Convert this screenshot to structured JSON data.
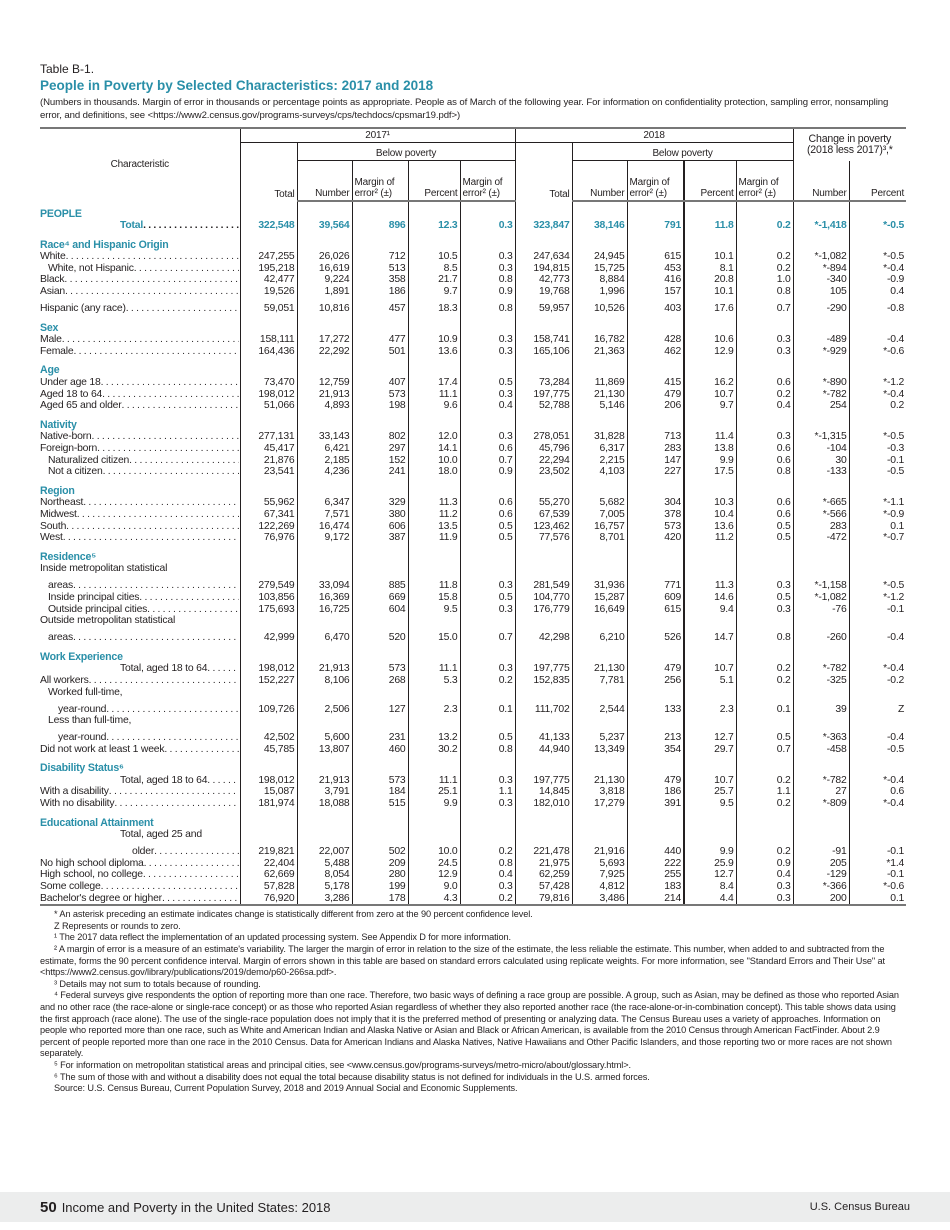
{
  "table_label": "Table B-1.",
  "title": "People in Poverty by Selected Characteristics: 2017 and 2018",
  "note": "(Numbers in thousands. Margin of error in thousands or percentage points as appropriate. People as of March of the following year. For information on confidentiality protection, sampling error, nonsampling error, and definitions, see <https://www2.census.gov/programs-surveys/cps/techdocs/cpsmar19.pdf>)",
  "header": {
    "characteristic": "Characteristic",
    "year1": "2017¹",
    "year2": "2018",
    "below": "Below poverty",
    "change": "Change in poverty (2018 less 2017)³,*",
    "total": "Total",
    "number": "Number",
    "moe": "Margin of error² (±)",
    "percent": "Percent"
  },
  "rows": [
    {
      "type": "sec",
      "label": "PEOPLE"
    },
    {
      "type": "total",
      "indent": 3,
      "label": "Total",
      "v": [
        "322,548",
        "39,564",
        "896",
        "12.3",
        "0.3",
        "323,847",
        "38,146",
        "791",
        "11.8",
        "0.2",
        "*-1,418",
        "*-0.5"
      ]
    },
    {
      "type": "sec",
      "label": "Race⁴ and Hispanic Origin"
    },
    {
      "indent": 0,
      "label": "White",
      "v": [
        "247,255",
        "26,026",
        "712",
        "10.5",
        "0.3",
        "247,634",
        "24,945",
        "615",
        "10.1",
        "0.2",
        "*-1,082",
        "*-0.5"
      ]
    },
    {
      "indent": 1,
      "label": "White, not Hispanic",
      "v": [
        "195,218",
        "16,619",
        "513",
        "8.5",
        "0.3",
        "194,815",
        "15,725",
        "453",
        "8.1",
        "0.2",
        "*-894",
        "*-0.4"
      ]
    },
    {
      "indent": 0,
      "label": "Black",
      "v": [
        "42,477",
        "9,224",
        "358",
        "21.7",
        "0.8",
        "42,773",
        "8,884",
        "416",
        "20.8",
        "1.0",
        "-340",
        "-0.9"
      ]
    },
    {
      "indent": 0,
      "label": "Asian",
      "v": [
        "19,526",
        "1,891",
        "186",
        "9.7",
        "0.9",
        "19,768",
        "1,996",
        "157",
        "10.1",
        "0.8",
        "105",
        "0.4"
      ]
    },
    {
      "type": "gap",
      "indent": 0,
      "label": "Hispanic (any race)",
      "v": [
        "59,051",
        "10,816",
        "457",
        "18.3",
        "0.8",
        "59,957",
        "10,526",
        "403",
        "17.6",
        "0.7",
        "-290",
        "-0.8"
      ]
    },
    {
      "type": "sec",
      "label": "Sex"
    },
    {
      "indent": 0,
      "label": "Male",
      "v": [
        "158,111",
        "17,272",
        "477",
        "10.9",
        "0.3",
        "158,741",
        "16,782",
        "428",
        "10.6",
        "0.3",
        "-489",
        "-0.4"
      ]
    },
    {
      "indent": 0,
      "label": "Female",
      "v": [
        "164,436",
        "22,292",
        "501",
        "13.6",
        "0.3",
        "165,106",
        "21,363",
        "462",
        "12.9",
        "0.3",
        "*-929",
        "*-0.6"
      ]
    },
    {
      "type": "sec",
      "label": "Age"
    },
    {
      "indent": 0,
      "label": "Under age 18",
      "v": [
        "73,470",
        "12,759",
        "407",
        "17.4",
        "0.5",
        "73,284",
        "11,869",
        "415",
        "16.2",
        "0.6",
        "*-890",
        "*-1.2"
      ]
    },
    {
      "indent": 0,
      "label": "Aged 18 to 64",
      "v": [
        "198,012",
        "21,913",
        "573",
        "11.1",
        "0.3",
        "197,775",
        "21,130",
        "479",
        "10.7",
        "0.2",
        "*-782",
        "*-0.4"
      ]
    },
    {
      "indent": 0,
      "label": "Aged 65 and older",
      "v": [
        "51,066",
        "4,893",
        "198",
        "9.6",
        "0.4",
        "52,788",
        "5,146",
        "206",
        "9.7",
        "0.4",
        "254",
        "0.2"
      ]
    },
    {
      "type": "sec",
      "label": "Nativity"
    },
    {
      "indent": 0,
      "label": "Native-born",
      "v": [
        "277,131",
        "33,143",
        "802",
        "12.0",
        "0.3",
        "278,051",
        "31,828",
        "713",
        "11.4",
        "0.3",
        "*-1,315",
        "*-0.5"
      ]
    },
    {
      "indent": 0,
      "label": "Foreign-born",
      "v": [
        "45,417",
        "6,421",
        "297",
        "14.1",
        "0.6",
        "45,796",
        "6,317",
        "283",
        "13.8",
        "0.6",
        "-104",
        "-0.3"
      ]
    },
    {
      "indent": 1,
      "label": "Naturalized citizen",
      "v": [
        "21,876",
        "2,185",
        "152",
        "10.0",
        "0.7",
        "22,294",
        "2,215",
        "147",
        "9.9",
        "0.6",
        "30",
        "-0.1"
      ]
    },
    {
      "indent": 1,
      "label": "Not a citizen",
      "v": [
        "23,541",
        "4,236",
        "241",
        "18.0",
        "0.9",
        "23,502",
        "4,103",
        "227",
        "17.5",
        "0.8",
        "-133",
        "-0.5"
      ]
    },
    {
      "type": "sec",
      "label": "Region"
    },
    {
      "indent": 0,
      "label": "Northeast",
      "v": [
        "55,962",
        "6,347",
        "329",
        "11.3",
        "0.6",
        "55,270",
        "5,682",
        "304",
        "10.3",
        "0.6",
        "*-665",
        "*-1.1"
      ]
    },
    {
      "indent": 0,
      "label": "Midwest",
      "v": [
        "67,341",
        "7,571",
        "380",
        "11.2",
        "0.6",
        "67,539",
        "7,005",
        "378",
        "10.4",
        "0.6",
        "*-566",
        "*-0.9"
      ]
    },
    {
      "indent": 0,
      "label": "South",
      "v": [
        "122,269",
        "16,474",
        "606",
        "13.5",
        "0.5",
        "123,462",
        "16,757",
        "573",
        "13.6",
        "0.5",
        "283",
        "0.1"
      ]
    },
    {
      "indent": 0,
      "label": "West",
      "v": [
        "76,976",
        "9,172",
        "387",
        "11.9",
        "0.5",
        "77,576",
        "8,701",
        "420",
        "11.2",
        "0.5",
        "-472",
        "*-0.7"
      ]
    },
    {
      "type": "sec",
      "label": "Residence⁵"
    },
    {
      "type": "head",
      "indent": 0,
      "label": "Inside metropolitan statistical"
    },
    {
      "type": "gap",
      "indent": 1,
      "label": "areas",
      "v": [
        "279,549",
        "33,094",
        "885",
        "11.8",
        "0.3",
        "281,549",
        "31,936",
        "771",
        "11.3",
        "0.3",
        "*-1,158",
        "*-0.5"
      ]
    },
    {
      "indent": 1,
      "label": "Inside principal cities",
      "v": [
        "103,856",
        "16,369",
        "669",
        "15.8",
        "0.5",
        "104,770",
        "15,287",
        "609",
        "14.6",
        "0.5",
        "*-1,082",
        "*-1.2"
      ]
    },
    {
      "indent": 1,
      "label": "Outside principal cities",
      "v": [
        "175,693",
        "16,725",
        "604",
        "9.5",
        "0.3",
        "176,779",
        "16,649",
        "615",
        "9.4",
        "0.3",
        "-76",
        "-0.1"
      ]
    },
    {
      "type": "head",
      "indent": 0,
      "label": "Outside metropolitan statistical"
    },
    {
      "type": "gap",
      "indent": 1,
      "label": "areas",
      "v": [
        "42,999",
        "6,470",
        "520",
        "15.0",
        "0.7",
        "42,298",
        "6,210",
        "526",
        "14.7",
        "0.8",
        "-260",
        "-0.4"
      ]
    },
    {
      "type": "sec",
      "label": "Work Experience"
    },
    {
      "indent": 3,
      "label": "Total, aged 18 to 64",
      "v": [
        "198,012",
        "21,913",
        "573",
        "11.1",
        "0.3",
        "197,775",
        "21,130",
        "479",
        "10.7",
        "0.2",
        "*-782",
        "*-0.4"
      ]
    },
    {
      "indent": 0,
      "label": "All workers",
      "v": [
        "152,227",
        "8,106",
        "268",
        "5.3",
        "0.2",
        "152,835",
        "7,781",
        "256",
        "5.1",
        "0.2",
        "-325",
        "-0.2"
      ]
    },
    {
      "type": "head",
      "indent": 1,
      "label": "Worked full-time,"
    },
    {
      "type": "gap",
      "indent": 2,
      "label": "year-round",
      "v": [
        "109,726",
        "2,506",
        "127",
        "2.3",
        "0.1",
        "111,702",
        "2,544",
        "133",
        "2.3",
        "0.1",
        "39",
        "Z"
      ]
    },
    {
      "type": "head",
      "indent": 1,
      "label": "Less than full-time,"
    },
    {
      "type": "gap",
      "indent": 2,
      "label": "year-round",
      "v": [
        "42,502",
        "5,600",
        "231",
        "13.2",
        "0.5",
        "41,133",
        "5,237",
        "213",
        "12.7",
        "0.5",
        "*-363",
        "-0.4"
      ]
    },
    {
      "indent": 0,
      "label": "Did not work at least 1 week",
      "v": [
        "45,785",
        "13,807",
        "460",
        "30.2",
        "0.8",
        "44,940",
        "13,349",
        "354",
        "29.7",
        "0.7",
        "-458",
        "-0.5"
      ]
    },
    {
      "type": "sec",
      "label": "Disability Status⁶"
    },
    {
      "indent": 3,
      "label": "Total, aged 18 to 64",
      "v": [
        "198,012",
        "21,913",
        "573",
        "11.1",
        "0.3",
        "197,775",
        "21,130",
        "479",
        "10.7",
        "0.2",
        "*-782",
        "*-0.4"
      ]
    },
    {
      "indent": 0,
      "label": "With a disability",
      "v": [
        "15,087",
        "3,791",
        "184",
        "25.1",
        "1.1",
        "14,845",
        "3,818",
        "186",
        "25.7",
        "1.1",
        "27",
        "0.6"
      ]
    },
    {
      "indent": 0,
      "label": "With no disability",
      "v": [
        "181,974",
        "18,088",
        "515",
        "9.9",
        "0.3",
        "182,010",
        "17,279",
        "391",
        "9.5",
        "0.2",
        "*-809",
        "*-0.4"
      ]
    },
    {
      "type": "sec",
      "label": "Educational Attainment"
    },
    {
      "type": "head",
      "indent": 3,
      "label": "Total, aged 25 and"
    },
    {
      "type": "gap",
      "indent": 4,
      "label": "older",
      "v": [
        "219,821",
        "22,007",
        "502",
        "10.0",
        "0.2",
        "221,478",
        "21,916",
        "440",
        "9.9",
        "0.2",
        "-91",
        "-0.1"
      ]
    },
    {
      "indent": 0,
      "label": "No high school diploma",
      "v": [
        "22,404",
        "5,488",
        "209",
        "24.5",
        "0.8",
        "21,975",
        "5,693",
        "222",
        "25.9",
        "0.9",
        "205",
        "*1.4"
      ]
    },
    {
      "indent": 0,
      "label": "High school, no college",
      "v": [
        "62,669",
        "8,054",
        "280",
        "12.9",
        "0.4",
        "62,259",
        "7,925",
        "255",
        "12.7",
        "0.4",
        "-129",
        "-0.1"
      ]
    },
    {
      "indent": 0,
      "label": "Some college",
      "v": [
        "57,828",
        "5,178",
        "199",
        "9.0",
        "0.3",
        "57,428",
        "4,812",
        "183",
        "8.4",
        "0.3",
        "*-366",
        "*-0.6"
      ]
    },
    {
      "indent": 0,
      "label": "Bachelor's degree or higher",
      "v": [
        "76,920",
        "3,286",
        "178",
        "4.3",
        "0.2",
        "79,816",
        "3,486",
        "214",
        "4.4",
        "0.3",
        "200",
        "0.1"
      ]
    }
  ],
  "footnotes": [
    "* An asterisk preceding an estimate indicates change is statistically different from zero at the 90 percent confidence level.",
    "Z Represents or rounds to zero.",
    "¹ The 2017 data reflect the implementation of an updated processing system. See Appendix D for more information.",
    "² A margin of error is a measure of an estimate's variability. The larger the margin of error in relation to the size of the estimate, the less reliable the estimate. This number, when added to and subtracted from the estimate, forms the 90 percent confidence interval. Margin of errors shown in this table are based on standard errors calculated using replicate weights. For more information, see \"Standard Errors and Their Use\" at <https://www2.census.gov/library/publications/2019/demo/p60-266sa.pdf>.",
    "³ Details may not sum to totals because of rounding.",
    "⁴ Federal surveys give respondents the option of reporting more than one race. Therefore, two basic ways of defining a race group are possible. A group, such as Asian, may be defined as those who reported Asian and no other race (the race-alone or single-race concept) or as those who reported Asian regardless of whether they also reported another race (the race-alone-or-in-combination concept). This table shows data using the first approach (race alone). The use of the single-race population does not imply that it is the preferred method of presenting or analyzing data. The Census Bureau uses a variety of approaches. Information on people who reported more than one race, such as White and American Indian and Alaska Native or Asian and Black or African American, is available from the 2010 Census through American FactFinder. About 2.9 percent of people reported more than one race in the 2010 Census. Data for American Indians and Alaska Natives, Native Hawaiians and Other Pacific Islanders, and those reporting two or more races are not shown separately.",
    "⁵ For information on metropolitan statistical areas and principal cities, see <www.census.gov/programs-surveys/metro-micro/about/glossary.html>.",
    "⁶ The sum of those with and without a disability does not equal the total because disability status is not defined for individuals in the U.S. armed forces.",
    "Source: U.S. Census Bureau, Current Population Survey, 2018 and 2019 Annual Social and Economic Supplements."
  ],
  "page_footer": {
    "page_number": "50",
    "publication": "Income and Poverty in the United States: 2018",
    "agency": "U.S. Census Bureau"
  }
}
